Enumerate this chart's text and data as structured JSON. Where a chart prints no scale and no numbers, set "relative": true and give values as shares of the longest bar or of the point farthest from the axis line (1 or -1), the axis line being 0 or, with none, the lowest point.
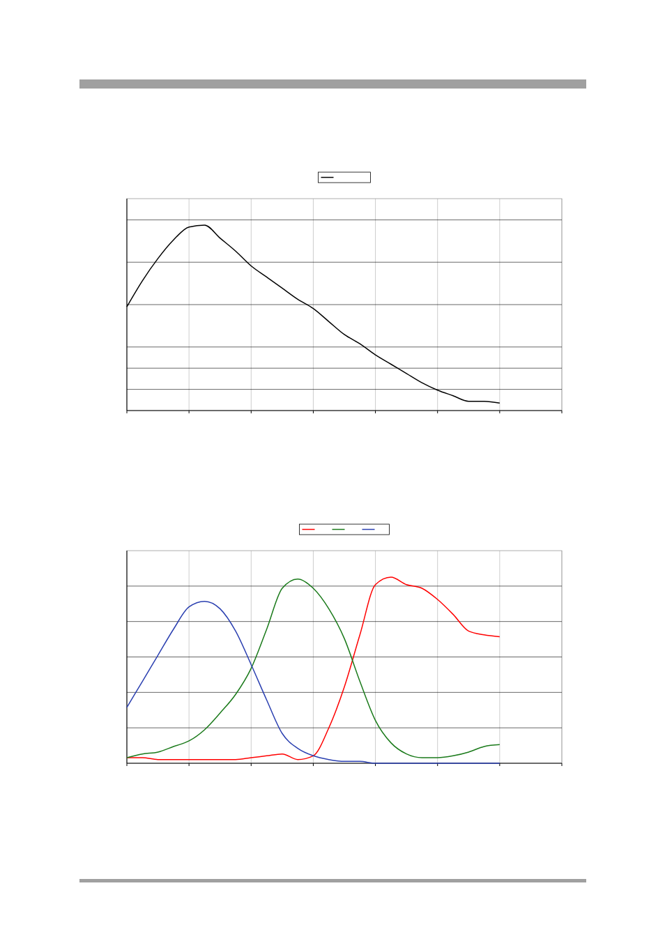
{
  "chart_data": [
    {
      "type": "line",
      "relative": true,
      "grid": true,
      "categories": [
        null,
        null,
        null,
        null,
        null,
        null,
        null,
        null,
        null,
        null,
        null,
        null,
        null,
        null,
        null,
        null,
        null,
        null,
        null,
        null,
        null,
        null,
        null,
        null,
        null,
        null,
        null,
        null,
        null
      ],
      "series": [
        {
          "color": "#000000",
          "values": [
            0.56,
            0.7,
            0.82,
            0.92,
            0.99,
            1,
            0.93,
            0.86,
            0.78,
            0.72,
            0.66,
            0.6,
            0.55,
            0.48,
            0.41,
            0.36,
            0.3,
            0.25,
            0.2,
            0.15,
            0.11,
            0.08,
            0.05,
            0.05,
            0.04,
            null,
            null,
            null,
            null
          ]
        }
      ]
    },
    {
      "type": "line",
      "relative": true,
      "grid": true,
      "categories": [
        null,
        null,
        null,
        null,
        null,
        null,
        null,
        null,
        null,
        null,
        null,
        null,
        null,
        null,
        null,
        null,
        null,
        null,
        null,
        null,
        null,
        null,
        null,
        null,
        null,
        null,
        null,
        null,
        null
      ],
      "series": [
        {
          "color": "#ff0000",
          "values": [
            0.03,
            0.03,
            0.02,
            0.02,
            0.02,
            0.02,
            0.02,
            0.02,
            0.03,
            0.04,
            0.05,
            0.02,
            0.04,
            0.19,
            0.41,
            0.69,
            0.96,
            1,
            0.96,
            0.94,
            0.88,
            0.8,
            0.71,
            0.69,
            0.68,
            null,
            null,
            null,
            null
          ]
        },
        {
          "color": "#1a7a1a",
          "values": [
            0.03,
            0.05,
            0.06,
            0.09,
            0.12,
            0.18,
            0.27,
            0.37,
            0.51,
            0.72,
            0.94,
            0.99,
            0.94,
            0.83,
            0.67,
            0.44,
            0.23,
            0.11,
            0.05,
            0.03,
            0.03,
            0.04,
            0.06,
            0.09,
            0.1,
            null,
            null,
            null,
            null
          ]
        },
        {
          "color": "#2a3fb0",
          "values": [
            0.3,
            0.44,
            0.58,
            0.72,
            0.84,
            0.87,
            0.83,
            0.71,
            0.53,
            0.34,
            0.16,
            0.08,
            0.04,
            0.02,
            0.01,
            0.01,
            0,
            0,
            0,
            0,
            0,
            0,
            0,
            0,
            0,
            null,
            null,
            null,
            null
          ]
        }
      ]
    }
  ]
}
